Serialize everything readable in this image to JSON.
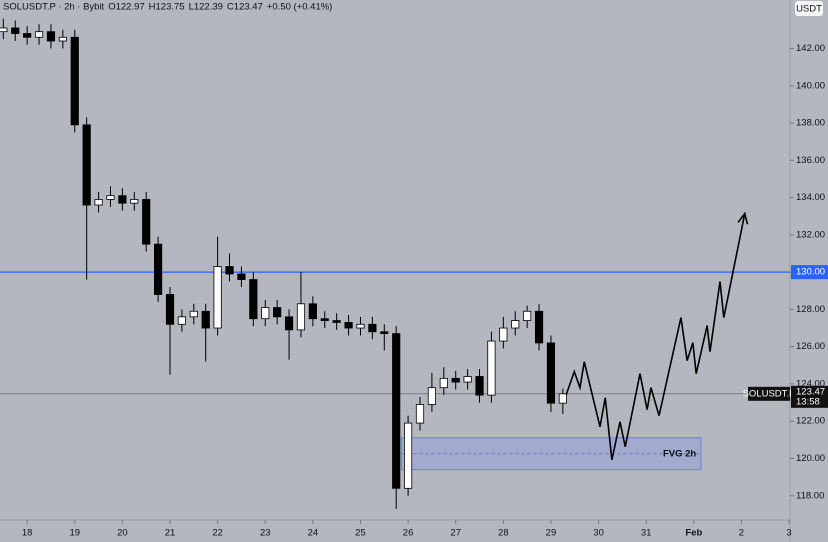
{
  "chart_data": {
    "type": "candlestick",
    "header": [
      "SOLUSDT.P · 2h · Bybit",
      "O122.97",
      "H123.75",
      "L122.39",
      "C123.47",
      "+0.50 (+0.41%)"
    ],
    "currency": "USDT",
    "xlim": [
      17.43,
      34.02
    ],
    "ylim": [
      116.7,
      144.6
    ],
    "xticks": [
      18,
      19,
      20,
      21,
      22,
      23,
      24,
      25,
      26,
      27,
      28,
      29,
      30,
      31,
      {
        "value": 32,
        "label": "Feb"
      },
      {
        "value": 33,
        "label": "2"
      },
      {
        "value": 34,
        "label": "3"
      }
    ],
    "yticks": [
      {
        "value": 118,
        "label": "118.00"
      },
      {
        "value": 120,
        "label": "120.00"
      },
      {
        "value": 122,
        "label": "122.00"
      },
      {
        "value": 124,
        "label": "124.00"
      },
      {
        "value": 126,
        "label": "126.00"
      },
      {
        "value": 128,
        "label": "128.00"
      },
      {
        "value": 130,
        "label": "130.00"
      },
      {
        "value": 132,
        "label": "132.00"
      },
      {
        "value": 134,
        "label": "134.00"
      },
      {
        "value": 136,
        "label": "136.00"
      },
      {
        "value": 138,
        "label": "138.00"
      },
      {
        "value": 140,
        "label": "140.00"
      },
      {
        "value": 142,
        "label": "142.00"
      }
    ],
    "up_color": "#ffffff",
    "down_color": "#000000",
    "candles": {
      "x": [
        17.5,
        17.75,
        18,
        18.25,
        18.5,
        18.75,
        19,
        19.25,
        19.5,
        19.75,
        20,
        20.25,
        20.5,
        20.75,
        21,
        21.25,
        21.5,
        21.75,
        22,
        22.25,
        22.5,
        22.75,
        23,
        23.25,
        23.5,
        23.75,
        24,
        24.25,
        24.5,
        24.75,
        25,
        25.25,
        25.5,
        25.75,
        26,
        26.25,
        26.5,
        26.75,
        27,
        27.25,
        27.5,
        27.75,
        28,
        28.25,
        28.5,
        28.75,
        29,
        29.25
      ],
      "open": [
        142.9,
        143.1,
        142.8,
        142.6,
        142.9,
        142.4,
        142.6,
        137.9,
        133.6,
        133.9,
        134.1,
        133.7,
        133.9,
        131.5,
        128.8,
        127.2,
        127.6,
        127.9,
        127.0,
        130.3,
        129.9,
        129.6,
        127.5,
        128.1,
        127.6,
        126.9,
        128.3,
        127.5,
        127.4,
        127.3,
        127.0,
        127.2,
        126.8,
        126.7,
        118.4,
        121.9,
        122.9,
        123.8,
        124.3,
        124.1,
        124.4,
        123.4,
        126.3,
        127.0,
        127.4,
        127.9,
        126.2,
        122.97
      ],
      "high": [
        143.6,
        143.5,
        143.2,
        143.3,
        143.3,
        143.0,
        143.0,
        138.3,
        134.3,
        134.6,
        134.5,
        134.3,
        134.3,
        131.9,
        129.2,
        128.0,
        128.3,
        128.3,
        131.9,
        131.0,
        130.3,
        130.0,
        128.5,
        128.5,
        128.0,
        130.0,
        128.7,
        127.9,
        127.8,
        127.7,
        127.6,
        127.6,
        127.2,
        127.1,
        122.3,
        123.3,
        124.6,
        124.9,
        124.7,
        124.8,
        124.8,
        126.8,
        127.6,
        127.9,
        128.2,
        128.3,
        126.6,
        123.75
      ],
      "low": [
        142.5,
        142.4,
        142.2,
        142.2,
        142.0,
        142.0,
        137.5,
        129.6,
        133.2,
        133.5,
        133.3,
        133.3,
        131.1,
        128.4,
        124.5,
        126.8,
        127.2,
        125.2,
        126.6,
        129.5,
        129.2,
        127.1,
        127.1,
        127.2,
        125.3,
        126.5,
        127.1,
        127.0,
        126.9,
        126.6,
        126.6,
        126.4,
        125.8,
        117.3,
        118.0,
        121.5,
        122.5,
        123.4,
        123.7,
        123.7,
        123.0,
        123.0,
        125.9,
        126.6,
        127.0,
        125.8,
        122.5,
        122.39
      ],
      "close": [
        143.1,
        142.8,
        142.6,
        142.9,
        142.4,
        142.6,
        137.9,
        133.6,
        133.9,
        134.1,
        133.7,
        133.9,
        131.5,
        128.8,
        127.2,
        127.6,
        127.9,
        127.0,
        130.3,
        129.9,
        129.6,
        127.5,
        128.1,
        127.6,
        126.9,
        128.3,
        127.5,
        127.4,
        127.3,
        127.0,
        127.2,
        126.8,
        126.7,
        118.4,
        121.9,
        122.9,
        123.8,
        124.3,
        124.1,
        124.4,
        123.4,
        126.3,
        127.0,
        127.4,
        127.9,
        126.2,
        122.97,
        123.47
      ]
    },
    "hline": {
      "value": 130,
      "label": "130.00",
      "color": "#2962ff"
    },
    "last_price": {
      "symbol": "SOLUSDT.P",
      "value": 123.47,
      "countdown": "13:58"
    },
    "fvg": {
      "label": "FVG 2h",
      "x": [
        25.86,
        32.15
      ],
      "y": [
        119.4,
        121.11
      ],
      "color": "#8c9ce0"
    },
    "projection": {
      "x": [
        29.32,
        29.49,
        29.61,
        29.7,
        30.03,
        30.14,
        30.28,
        30.45,
        30.56,
        30.87,
        31.02,
        31.1,
        31.27,
        31.73,
        31.86,
        31.98,
        32.05,
        32.28,
        32.34,
        32.55,
        32.63,
        33.07
      ],
      "y": [
        123.42,
        124.66,
        123.8,
        125.19,
        121.7,
        123.26,
        119.93,
        121.97,
        120.63,
        124.55,
        122.62,
        123.8,
        122.3,
        127.56,
        125.25,
        126.21,
        124.55,
        127.13,
        125.73,
        129.49,
        127.56,
        133.14
      ]
    }
  }
}
